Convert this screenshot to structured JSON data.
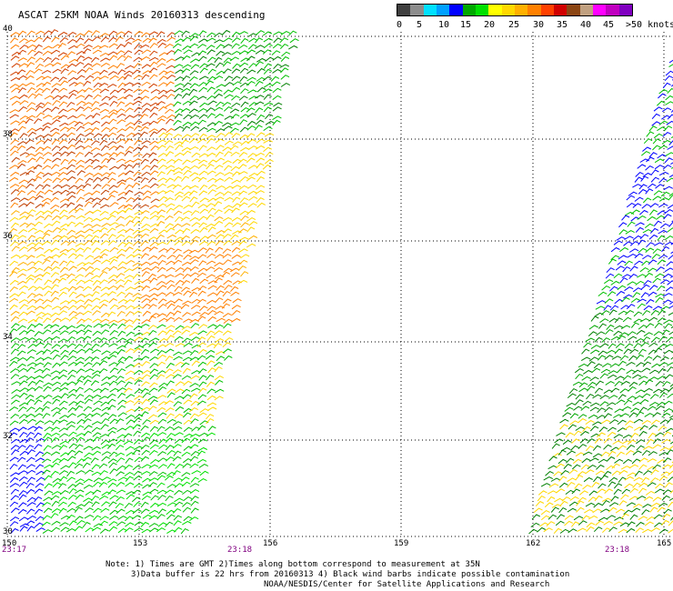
{
  "title": "ASCAT 25KM NOAA Winds 20160313 descending",
  "legend": {
    "colors": [
      "#3f3f3f",
      "#8c8c8c",
      "#00e0ff",
      "#00a0ff",
      "#0000ff",
      "#00a800",
      "#00e000",
      "#ffff00",
      "#ffd800",
      "#ffb000",
      "#ff8000",
      "#ff4000",
      "#d00000",
      "#8b4513",
      "#c0a080",
      "#ff00ff",
      "#c000c0",
      "#8000c0"
    ],
    "labels": [
      "0",
      "5",
      "10",
      "15",
      "20",
      "25",
      "30",
      "35",
      "40",
      "45",
      ">50 knots"
    ]
  },
  "axes": {
    "latitudes": [
      "40",
      "38",
      "36",
      "34",
      "32",
      "30"
    ],
    "longitudes": [
      "150",
      "153",
      "156",
      "159",
      "162",
      "165"
    ],
    "times": [
      "23:17",
      "23:18",
      "23:18"
    ]
  },
  "notes": {
    "line1": "Note: 1) Times are GMT 2)Times along bottom correspond to measurement at 35N",
    "line2": "3)Data buffer is 22 hrs from 20160313 4) Black wind barbs indicate possible contamination",
    "line3": "NOAA/NESDIS/Center for Satellite Applications and Research"
  }
}
